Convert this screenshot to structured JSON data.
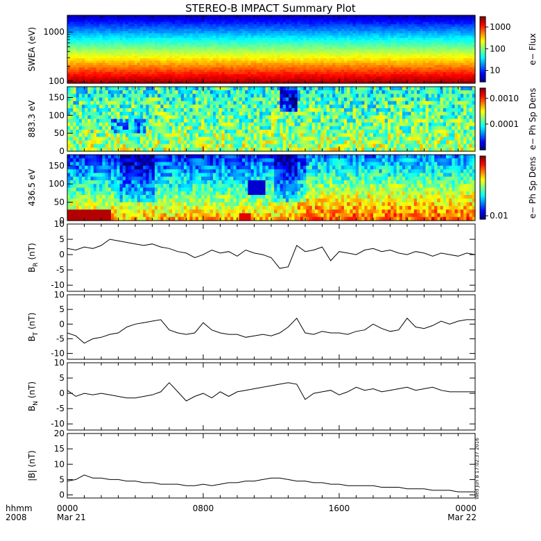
{
  "title": "STEREO-B IMPACT Summary Plot",
  "timestamp_label": "Wed Jun 8 17:02:37 2016",
  "xaxis": {
    "row1_label": "hhmm",
    "row2_label": "2008",
    "ticks": [
      {
        "t": 0,
        "line1": "0000",
        "line2": "Mar 21"
      },
      {
        "t": 8,
        "line1": "0800",
        "line2": ""
      },
      {
        "t": 16,
        "line1": "1600",
        "line2": ""
      },
      {
        "t": 24,
        "line1": "0000",
        "line2": "Mar 22"
      }
    ],
    "range_hours": [
      0,
      24
    ]
  },
  "chart_data": [
    {
      "type": "heatmap",
      "id": "swea",
      "ylabel": "SWEA (eV)",
      "yscale": "log",
      "ylim": [
        90,
        2200
      ],
      "yticks": [
        100,
        1000
      ],
      "ytick_labels": [
        "100",
        "1000"
      ],
      "colorbar": {
        "label": "e− Flux",
        "scale": "log",
        "ticks": [
          10,
          100,
          1000
        ],
        "tick_labels": [
          "10",
          "100",
          "1000"
        ],
        "range": [
          3,
          3000
        ]
      },
      "description_of_values": "flux decreases with energy: ~3000 at 100 eV, ~100 at 400 eV, ~5 at 2000 eV"
    },
    {
      "type": "heatmap",
      "id": "pad883",
      "ylabel": "883.3 eV",
      "ylim": [
        0,
        180
      ],
      "yticks": [
        0,
        50,
        100,
        150
      ],
      "colorbar": {
        "label": "e− Ph Sp Dens",
        "scale": "log",
        "ticks": [
          0.0001,
          0.001
        ],
        "tick_labels": [
          "0.0001",
          "0.0010"
        ],
        "range": [
          1e-05,
          0.0025
        ]
      }
    },
    {
      "type": "heatmap",
      "id": "pad436",
      "ylabel": "436.5 eV",
      "ylim": [
        0,
        180
      ],
      "yticks": [
        0,
        50,
        100,
        150
      ],
      "colorbar": {
        "label": "e− Ph Sp Dens",
        "scale": "log",
        "ticks": [
          0.01
        ],
        "tick_labels": [
          "0.01"
        ],
        "range": [
          0.008,
          0.5
        ]
      }
    },
    {
      "type": "line",
      "id": "br",
      "ylabel": "B_R (nT)",
      "ylabel_main": "B",
      "ylabel_sub": "R",
      "ylabel_unit": "(nT)",
      "ylim": [
        -12,
        10
      ],
      "yticks": [
        -10,
        -5,
        0,
        5,
        10
      ],
      "x": [
        0,
        0.5,
        1,
        1.5,
        2,
        2.5,
        3,
        3.5,
        4,
        4.5,
        5,
        5.5,
        6,
        6.5,
        7,
        7.5,
        8,
        8.5,
        9,
        9.5,
        10,
        10.5,
        11,
        11.5,
        12,
        12.5,
        13,
        13.5,
        14,
        14.5,
        15,
        15.5,
        16,
        16.5,
        17,
        17.5,
        18,
        18.5,
        19,
        19.5,
        20,
        20.5,
        21,
        21.5,
        22,
        22.5,
        23,
        23.5,
        24
      ],
      "values": [
        2,
        1.5,
        2.5,
        2,
        3,
        5,
        4.5,
        4,
        3.5,
        3,
        3.5,
        2.5,
        2,
        1,
        0.5,
        -1,
        0,
        1.5,
        0.5,
        1,
        -0.5,
        1.5,
        0.5,
        0,
        -1,
        -4.5,
        -4,
        3,
        1,
        1.5,
        2.5,
        -2,
        1,
        0.5,
        0,
        1.5,
        2,
        1,
        1.5,
        0.5,
        0,
        1,
        0.5,
        -0.5,
        0.5,
        0,
        -0.5,
        0.5,
        0
      ]
    },
    {
      "type": "line",
      "id": "bt",
      "ylabel": "B_T (nT)",
      "ylabel_main": "B",
      "ylabel_sub": "T",
      "ylabel_unit": "(nT)",
      "ylim": [
        -12,
        10
      ],
      "yticks": [
        -10,
        -5,
        0,
        5,
        10
      ],
      "x": [
        0,
        0.5,
        1,
        1.5,
        2,
        2.5,
        3,
        3.5,
        4,
        4.5,
        5,
        5.5,
        6,
        6.5,
        7,
        7.5,
        8,
        8.5,
        9,
        9.5,
        10,
        10.5,
        11,
        11.5,
        12,
        12.5,
        13,
        13.5,
        14,
        14.5,
        15,
        15.5,
        16,
        16.5,
        17,
        17.5,
        18,
        18.5,
        19,
        19.5,
        20,
        20.5,
        21,
        21.5,
        22,
        22.5,
        23,
        23.5,
        24
      ],
      "values": [
        -3,
        -4,
        -6.5,
        -5,
        -4.5,
        -3.5,
        -3,
        -1,
        0,
        0.5,
        1,
        1.5,
        -2,
        -3,
        -3.5,
        -3,
        0.5,
        -2,
        -3,
        -3.5,
        -3.5,
        -4.5,
        -4,
        -3.5,
        -4,
        -3,
        -1,
        2,
        -3,
        -3.5,
        -2.5,
        -3,
        -3,
        -3.5,
        -2.5,
        -2,
        0,
        -1.5,
        -2.5,
        -2,
        2,
        -1,
        -1.5,
        -0.5,
        1,
        0,
        1,
        1.5,
        1.5
      ]
    },
    {
      "type": "line",
      "id": "bn",
      "ylabel": "B_N (nT)",
      "ylabel_main": "B",
      "ylabel_sub": "N",
      "ylabel_unit": "(nT)",
      "ylim": [
        -12,
        10
      ],
      "yticks": [
        -10,
        -5,
        0,
        5,
        10
      ],
      "x": [
        0,
        0.5,
        1,
        1.5,
        2,
        2.5,
        3,
        3.5,
        4,
        4.5,
        5,
        5.5,
        6,
        6.5,
        7,
        7.5,
        8,
        8.5,
        9,
        9.5,
        10,
        10.5,
        11,
        11.5,
        12,
        12.5,
        13,
        13.5,
        14,
        14.5,
        15,
        15.5,
        16,
        16.5,
        17,
        17.5,
        18,
        18.5,
        19,
        19.5,
        20,
        20.5,
        21,
        21.5,
        22,
        22.5,
        23,
        23.5,
        24
      ],
      "values": [
        1,
        -1,
        0,
        -0.5,
        0,
        -0.5,
        -1,
        -1.5,
        -1.5,
        -1,
        -0.5,
        0.5,
        3.5,
        0.5,
        -2.5,
        -1,
        0,
        -1.5,
        0.5,
        -1,
        0.5,
        1,
        1.5,
        2,
        2.5,
        3,
        3.5,
        3,
        -2,
        0,
        0.5,
        1,
        -0.5,
        0.5,
        2,
        1,
        1.5,
        0.5,
        1,
        1.5,
        2,
        1,
        1.5,
        2,
        1,
        0.5,
        0.5,
        0.5,
        0.5
      ]
    },
    {
      "type": "line",
      "id": "bmag",
      "ylabel": "|B| (nT)",
      "ylabel_main": "|B| (nT)",
      "ylim": [
        -1,
        20
      ],
      "yticks": [
        0,
        5,
        10,
        15,
        20
      ],
      "x": [
        0,
        0.5,
        1,
        1.5,
        2,
        2.5,
        3,
        3.5,
        4,
        4.5,
        5,
        5.5,
        6,
        6.5,
        7,
        7.5,
        8,
        8.5,
        9,
        9.5,
        10,
        10.5,
        11,
        11.5,
        12,
        12.5,
        13,
        13.5,
        14,
        14.5,
        15,
        15.5,
        16,
        16.5,
        17,
        17.5,
        18,
        18.5,
        19,
        19.5,
        20,
        20.5,
        21,
        21.5,
        22,
        22.5,
        23,
        23.5,
        24
      ],
      "values": [
        4.5,
        5,
        6.5,
        5.5,
        5.5,
        5,
        5,
        4.5,
        4.5,
        4,
        4,
        3.5,
        3.5,
        3.5,
        3,
        3,
        3.5,
        3,
        3.5,
        4,
        4,
        4.5,
        4.5,
        5,
        5.5,
        5.5,
        5,
        4.5,
        4.5,
        4,
        4,
        3.5,
        3.5,
        3,
        3,
        3,
        3,
        2.5,
        2.5,
        2.5,
        2,
        2,
        2,
        1.5,
        1.5,
        1.5,
        1,
        1,
        1
      ]
    }
  ]
}
